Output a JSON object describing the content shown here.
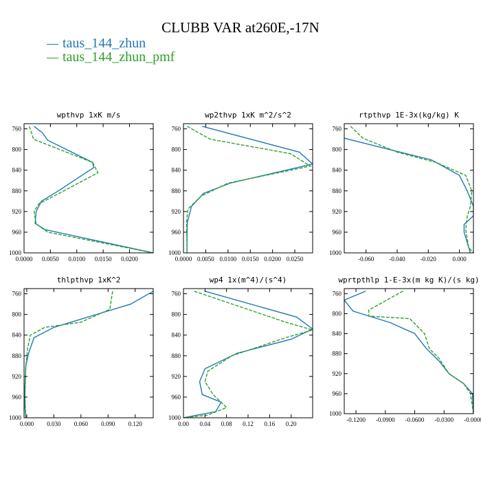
{
  "title": "CLUBB VAR at260E,-17N",
  "legend": [
    {
      "label": "taus_144_zhun",
      "color": "#1f77b4",
      "dash": "solid"
    },
    {
      "label": "taus_144_zhun_pmf",
      "color": "#2ca02c",
      "dash": "dashed"
    }
  ],
  "chart_data": [
    {
      "type": "line",
      "title": "wpthvp  1xK m/s",
      "xlim": [
        0,
        0.0245
      ],
      "ylim": [
        1000,
        750
      ],
      "xticks": [
        0,
        0.005,
        0.01,
        0.015,
        0.02
      ],
      "xticklabels": [
        "0.0000",
        "0.0050",
        "0.0100",
        "0.0150",
        "0.0200"
      ],
      "yticks": [
        760,
        800,
        840,
        880,
        920,
        960,
        1000
      ],
      "series": [
        {
          "name": "taus_144_zhun",
          "color": "#1f77b4",
          "x": [
            0.0019,
            0.0035,
            0.0045,
            0.013,
            0.0132,
            0.0065,
            0.0033,
            0.0023,
            0.0021,
            0.004,
            0.0245
          ],
          "y": [
            755,
            768,
            782,
            825,
            835,
            880,
            900,
            920,
            943,
            955,
            1000
          ]
        },
        {
          "name": "taus_144_zhun_pmf",
          "color": "#2ca02c",
          "x": [
            0.001,
            0.0018,
            0.013,
            0.014,
            0.007,
            0.0028,
            0.0019,
            0.0023,
            0.0045,
            0.0245
          ],
          "y": [
            755,
            780,
            825,
            845,
            883,
            905,
            920,
            944,
            960,
            1000
          ]
        }
      ]
    },
    {
      "type": "line",
      "title": "wp2thvp  1xK m^2/s^2",
      "xlim": [
        0,
        0.029
      ],
      "ylim": [
        1000,
        750
      ],
      "xticks": [
        0,
        0.005,
        0.01,
        0.015,
        0.02,
        0.025
      ],
      "xticklabels": [
        "0.0000",
        "0.0050",
        "0.0100",
        "0.0150",
        "0.0200",
        "0.0250"
      ],
      "yticks": [
        760,
        800,
        840,
        880,
        920,
        960,
        1000
      ],
      "series": [
        {
          "name": "taus_144_zhun",
          "color": "#1f77b4",
          "x": [
            0.0042,
            0.026,
            0.029,
            0.0105,
            0.0045,
            0.0018,
            0.0009,
            0.0008,
            0.0008
          ],
          "y": [
            755,
            805,
            828,
            865,
            885,
            910,
            940,
            960,
            1000
          ]
        },
        {
          "name": "taus_144_zhun_pmf",
          "color": "#2ca02c",
          "x": [
            0.0008,
            0.006,
            0.024,
            0.0285,
            0.01,
            0.004,
            0.001,
            0.0007,
            0.0008
          ],
          "y": [
            755,
            780,
            808,
            832,
            865,
            890,
            915,
            940,
            1000
          ]
        }
      ]
    },
    {
      "type": "line",
      "title": "rtpthvp  1E-3x(kg/kg) K",
      "xlim": [
        -0.074,
        0.009
      ],
      "ylim": [
        1000,
        750
      ],
      "xticks": [
        -0.06,
        -0.04,
        -0.02,
        0
      ],
      "xticklabels": [
        "-0.060",
        "-0.040",
        "-0.020",
        "0.000"
      ],
      "yticks": [
        760,
        800,
        840,
        880,
        920,
        960,
        1000
      ],
      "series": [
        {
          "name": "taus_144_zhun",
          "color": "#1f77b4",
          "x": [
            -0.074,
            -0.045,
            -0.018,
            0.0,
            0.005,
            0.009,
            0.009,
            0.003,
            0.003,
            0.007
          ],
          "y": [
            778,
            800,
            820,
            850,
            880,
            910,
            928,
            945,
            960,
            1000
          ]
        },
        {
          "name": "taus_144_zhun_pmf",
          "color": "#2ca02c",
          "x": [
            -0.07,
            -0.062,
            -0.04,
            -0.015,
            0.004,
            0.008,
            0.007,
            0.005,
            0.004,
            0.006,
            0.009
          ],
          "y": [
            755,
            778,
            805,
            825,
            850,
            880,
            910,
            930,
            955,
            990,
            1000
          ]
        }
      ]
    },
    {
      "type": "line",
      "title": "thlpthvp  1xK^2",
      "xlim": [
        -0.003,
        0.14
      ],
      "ylim": [
        1000,
        750
      ],
      "xticks": [
        0,
        0.03,
        0.06,
        0.09,
        0.12
      ],
      "xticklabels": [
        "0.000",
        "0.030",
        "0.060",
        "0.090",
        "0.120"
      ],
      "yticks": [
        760,
        800,
        840,
        880,
        920,
        960,
        1000
      ],
      "series": [
        {
          "name": "taus_144_zhun",
          "color": "#1f77b4",
          "x": [
            0.14,
            0.115,
            0.03,
            0.008,
            0.002,
            -0.001,
            -0.002,
            -0.002,
            -0.001
          ],
          "y": [
            755,
            780,
            825,
            845,
            875,
            900,
            940,
            980,
            1000
          ]
        },
        {
          "name": "taus_144_zhun_pmf",
          "color": "#2ca02c",
          "x": [
            0.095,
            0.092,
            0.06,
            0.02,
            0.004,
            0.001,
            -0.001,
            -0.002,
            -0.001
          ],
          "y": [
            755,
            790,
            815,
            825,
            840,
            865,
            900,
            960,
            1000
          ]
        }
      ]
    },
    {
      "type": "line",
      "title": "wp4  1x(m^4)/(s^4)",
      "xlim": [
        0,
        0.24
      ],
      "ylim": [
        1000,
        750
      ],
      "xticks": [
        0,
        0.04,
        0.08,
        0.12,
        0.16,
        0.2
      ],
      "xticklabels": [
        "0.00",
        "0.04",
        "0.08",
        "0.12",
        "0.16",
        "0.20"
      ],
      "yticks": [
        760,
        800,
        840,
        880,
        920,
        960,
        1000
      ],
      "series": [
        {
          "name": "taus_144_zhun",
          "color": "#1f77b4",
          "x": [
            0.04,
            0.21,
            0.24,
            0.2,
            0.1,
            0.04,
            0.03,
            0.035,
            0.07,
            0.06,
            0.0
          ],
          "y": [
            755,
            805,
            828,
            848,
            875,
            905,
            930,
            955,
            970,
            988,
            1000
          ]
        },
        {
          "name": "taus_144_zhun_pmf",
          "color": "#2ca02c",
          "x": [
            0.02,
            0.19,
            0.24,
            0.19,
            0.09,
            0.045,
            0.04,
            0.055,
            0.08,
            0.045,
            0.0
          ],
          "y": [
            755,
            815,
            830,
            845,
            880,
            910,
            930,
            955,
            980,
            995,
            1000
          ]
        }
      ]
    },
    {
      "type": "line",
      "title": "wprtpthlp  1-E-3x(m kg K)/(s kg)",
      "xlim": [
        -0.132,
        0
      ],
      "ylim": [
        1000,
        750
      ],
      "xticks": [
        -0.12,
        -0.09,
        -0.06,
        -0.03,
        0
      ],
      "xticklabels": [
        "-0.1200",
        "-0.0900",
        "-0.0600",
        "-0.0300",
        "-0.0000"
      ],
      "yticks": [
        760,
        800,
        840,
        880,
        920,
        960,
        1000
      ],
      "series": [
        {
          "name": "taus_144_zhun",
          "color": "#1f77b4",
          "x": [
            -0.11,
            -0.132,
            -0.123,
            -0.085,
            -0.06,
            -0.048,
            -0.035,
            -0.025,
            -0.01,
            -0.001,
            0.0
          ],
          "y": [
            755,
            773,
            795,
            818,
            840,
            870,
            895,
            920,
            940,
            960,
            1000
          ]
        },
        {
          "name": "taus_144_zhun_pmf",
          "color": "#2ca02c",
          "x": [
            -0.072,
            -0.107,
            -0.107,
            -0.065,
            -0.05,
            -0.045,
            -0.035,
            -0.025,
            -0.01,
            -0.003,
            0.0
          ],
          "y": [
            755,
            793,
            805,
            810,
            840,
            870,
            890,
            920,
            940,
            960,
            1000
          ]
        }
      ]
    }
  ]
}
